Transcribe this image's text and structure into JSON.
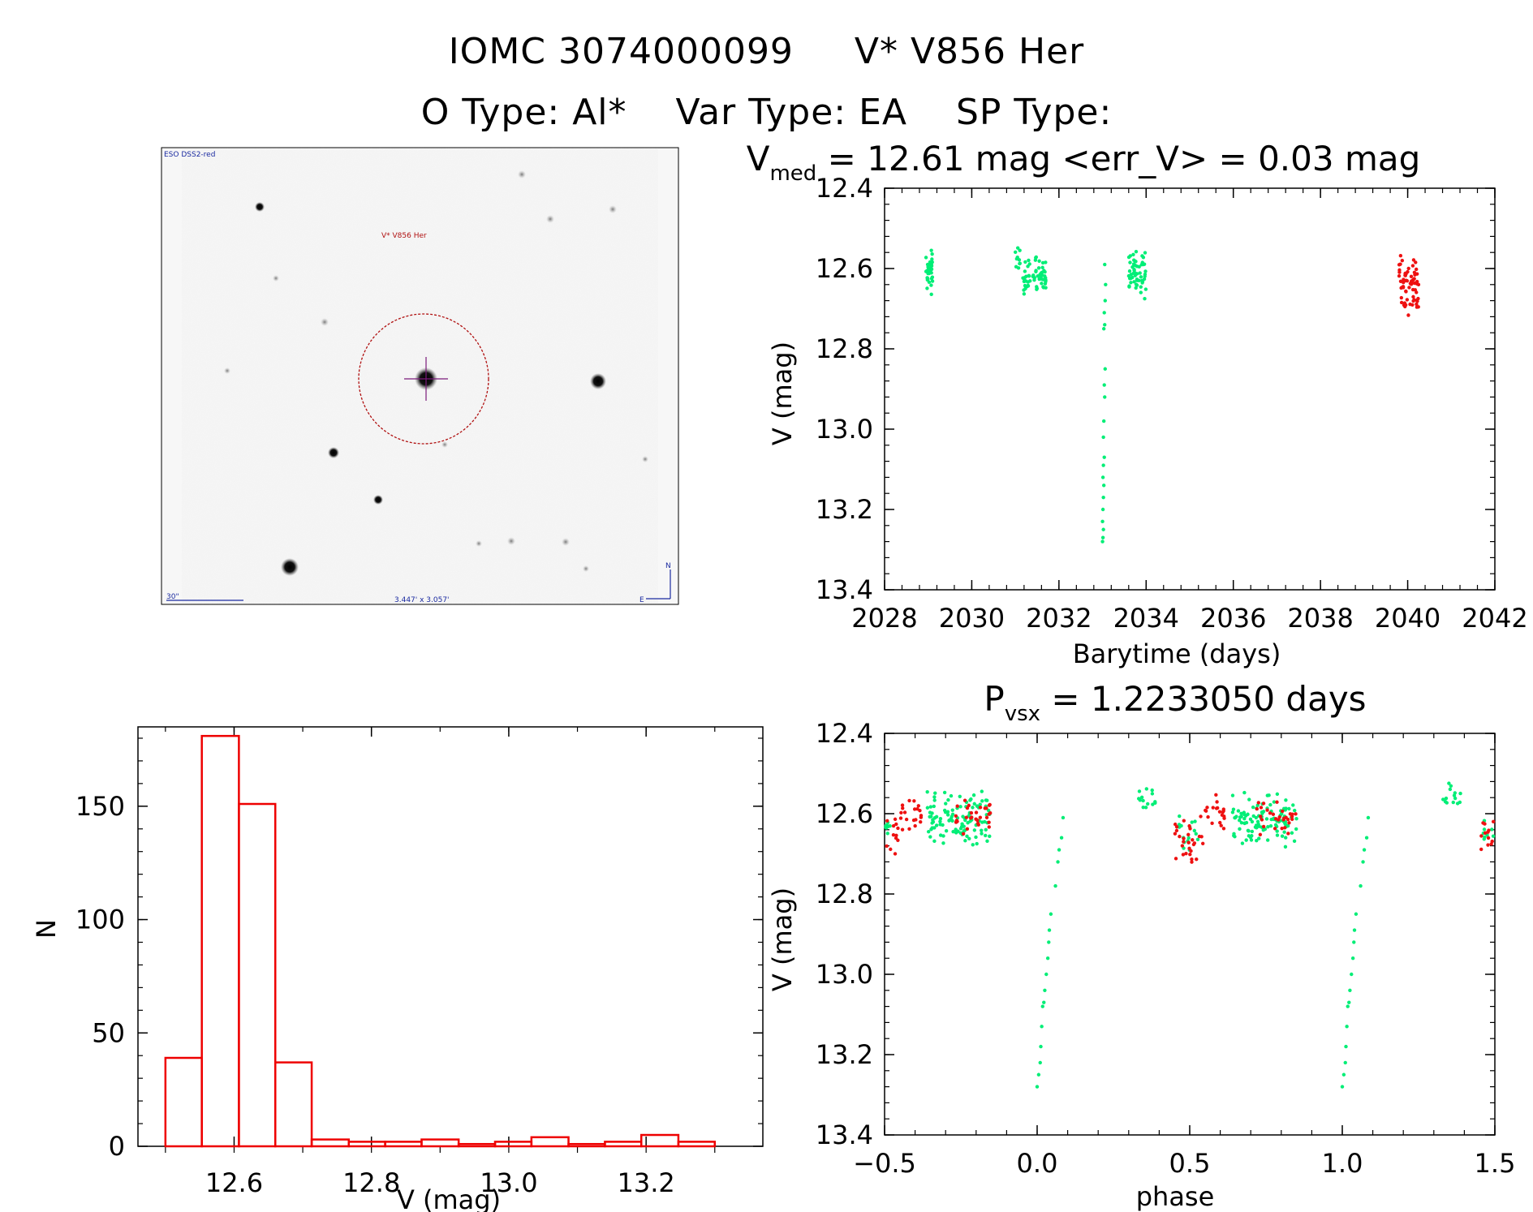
{
  "header": {
    "line1": "IOMC 3074000099",
    "line1_name": "V* V856 Her",
    "line2_otype": "O Type: Al*",
    "line2_vartype": "Var Type: EA",
    "line2_sptype": "SP Type:"
  },
  "colors": {
    "green": "#00ee76",
    "red": "#ee1111",
    "hist": "#ee0000",
    "image_circle": "#b01010",
    "image_label": "#b01010",
    "image_blue": "#1a2aa0",
    "image_cross": "#7a1a7a"
  },
  "finder": {
    "survey": "ESO DSS2-red",
    "object_label": "V* V856 Her",
    "scale_label": "30\"",
    "fov_label": "3.447' x 3.057'",
    "north": "N",
    "east": "E"
  },
  "chart_data": [
    {
      "id": "lightcurve",
      "type": "scatter",
      "title": "V_med = 12.61 mag <err_V> = 0.03 mag",
      "title_parts": {
        "v": "V",
        "sub": "med",
        "rest": " = 12.61 mag <err_V> = 0.03 mag"
      },
      "xlabel": "Barytime (days)",
      "ylabel": "V (mag)",
      "xlim": [
        2028,
        2042
      ],
      "ylim": [
        13.4,
        12.4
      ],
      "x_ticks": [
        "2028",
        "2030",
        "2032",
        "2034",
        "2036",
        "2038",
        "2040",
        "2042"
      ],
      "y_ticks": [
        "12.4",
        "12.6",
        "12.8",
        "13.0",
        "13.2",
        "13.4"
      ],
      "series": [
        {
          "name": "green",
          "color": "green",
          "clusters": [
            {
              "x": [
                2028.95,
                2029.1
              ],
              "y": [
                12.53,
                12.68
              ],
              "n": 40
            },
            {
              "x": [
                2031.0,
                2031.15
              ],
              "y": [
                12.52,
                12.62
              ],
              "n": 10
            },
            {
              "x": [
                2031.15,
                2031.35
              ],
              "y": [
                12.57,
                12.69
              ],
              "n": 22
            },
            {
              "x": [
                2031.4,
                2031.7
              ],
              "y": [
                12.56,
                12.67
              ],
              "n": 40
            }
          ],
          "points": [
            [
              2033.05,
              12.59
            ],
            [
              2033.07,
              12.64
            ],
            [
              2033.06,
              12.68
            ],
            [
              2033.04,
              12.71
            ],
            [
              2033.05,
              12.74
            ],
            [
              2033.03,
              12.75
            ],
            [
              2033.06,
              12.85
            ],
            [
              2033.04,
              12.89
            ],
            [
              2033.05,
              12.92
            ],
            [
              2033.03,
              12.98
            ],
            [
              2033.02,
              13.02
            ],
            [
              2033.04,
              13.07
            ],
            [
              2033.02,
              13.09
            ],
            [
              2033.01,
              13.12
            ],
            [
              2033.03,
              13.14
            ],
            [
              2033.02,
              13.17
            ],
            [
              2033.01,
              13.2
            ],
            [
              2033.0,
              13.23
            ],
            [
              2033.02,
              13.25
            ],
            [
              2033.01,
              13.27
            ],
            [
              2033.0,
              13.28
            ]
          ],
          "clusters2": [
            {
              "x": [
                2033.6,
                2034.0
              ],
              "y": [
                12.55,
                12.68
              ],
              "n": 55
            }
          ]
        },
        {
          "name": "red",
          "color": "red",
          "clusters": [
            {
              "x": [
                2039.8,
                2040.25
              ],
              "y": [
                12.55,
                12.72
              ],
              "n": 70
            }
          ]
        }
      ]
    },
    {
      "id": "histogram",
      "type": "bar",
      "xlabel": "V (mag)",
      "ylabel": "N",
      "xlim": [
        12.46,
        13.37
      ],
      "ylim": [
        0,
        185
      ],
      "x_ticks": [
        "12.6",
        "12.8",
        "13.0",
        "13.2"
      ],
      "y_ticks": [
        "0",
        "50",
        "100",
        "150"
      ],
      "bin_edges": [
        12.5,
        12.553,
        12.607,
        12.66,
        12.713,
        12.767,
        12.82,
        12.873,
        12.927,
        12.98,
        13.033,
        13.087,
        13.14,
        13.193,
        13.247,
        13.3
      ],
      "values": [
        39,
        181,
        151,
        37,
        3,
        2,
        2,
        3,
        1,
        2,
        4,
        1,
        2,
        5,
        2
      ]
    },
    {
      "id": "phased",
      "type": "scatter",
      "title": "P_vsx = 1.2233050 days",
      "title_parts": {
        "v": "P",
        "sub": "vsx",
        "rest": " = 1.2233050 days"
      },
      "xlabel": "phase",
      "ylabel": "V (mag)",
      "xlim": [
        -0.5,
        1.5
      ],
      "ylim": [
        13.4,
        12.4
      ],
      "x_ticks": [
        "−0.5",
        "0.0",
        "0.5",
        "1.0",
        "1.5"
      ],
      "y_ticks": [
        "12.4",
        "12.6",
        "12.8",
        "13.0",
        "13.2",
        "13.4"
      ],
      "series": [
        {
          "name": "green",
          "color": "green",
          "clusters": [
            {
              "x": [
                -0.5,
                -0.48
              ],
              "y": [
                12.6,
                12.68
              ],
              "n": 8
            },
            {
              "x": [
                -0.36,
                -0.15
              ],
              "y": [
                12.54,
                12.69
              ],
              "n": 110
            },
            {
              "x": [
                0.33,
                0.39
              ],
              "y": [
                12.52,
                12.6
              ],
              "n": 14
            },
            {
              "x": [
                0.46,
                0.53
              ],
              "y": [
                12.6,
                12.7
              ],
              "n": 16
            },
            {
              "x": [
                0.64,
                0.85
              ],
              "y": [
                12.54,
                12.69
              ],
              "n": 110
            },
            {
              "x": [
                1.33,
                1.39
              ],
              "y": [
                12.52,
                12.6
              ],
              "n": 14
            },
            {
              "x": [
                1.46,
                1.5
              ],
              "y": [
                12.6,
                12.7
              ],
              "n": 8
            }
          ],
          "points": [
            [
              0.0,
              13.28
            ],
            [
              0.005,
              13.25
            ],
            [
              0.01,
              13.22
            ],
            [
              0.012,
              13.18
            ],
            [
              0.015,
              13.13
            ],
            [
              0.018,
              13.08
            ],
            [
              0.022,
              13.07
            ],
            [
              0.025,
              13.04
            ],
            [
              0.03,
              13.0
            ],
            [
              0.035,
              12.96
            ],
            [
              0.038,
              12.92
            ],
            [
              0.04,
              12.89
            ],
            [
              0.045,
              12.85
            ],
            [
              0.06,
              12.78
            ],
            [
              0.068,
              12.72
            ],
            [
              0.072,
              12.69
            ],
            [
              0.08,
              12.66
            ],
            [
              0.085,
              12.61
            ],
            [
              1.0,
              13.28
            ],
            [
              1.005,
              13.25
            ],
            [
              1.01,
              13.22
            ],
            [
              1.012,
              13.18
            ],
            [
              1.015,
              13.13
            ],
            [
              1.018,
              13.08
            ],
            [
              1.022,
              13.07
            ],
            [
              1.025,
              13.04
            ],
            [
              1.03,
              13.0
            ],
            [
              1.035,
              12.96
            ],
            [
              1.038,
              12.92
            ],
            [
              1.04,
              12.89
            ],
            [
              1.045,
              12.85
            ],
            [
              1.06,
              12.78
            ],
            [
              1.068,
              12.72
            ],
            [
              1.072,
              12.69
            ],
            [
              1.08,
              12.66
            ],
            [
              1.085,
              12.61
            ]
          ]
        },
        {
          "name": "red",
          "color": "red",
          "clusters": [
            {
              "x": [
                -0.5,
                -0.45
              ],
              "y": [
                12.6,
                12.73
              ],
              "n": 12
            },
            {
              "x": [
                -0.45,
                -0.38
              ],
              "y": [
                12.55,
                12.65
              ],
              "n": 20
            },
            {
              "x": [
                -0.28,
                -0.15
              ],
              "y": [
                12.56,
                12.66
              ],
              "n": 30
            },
            {
              "x": [
                0.45,
                0.55
              ],
              "y": [
                12.6,
                12.73
              ],
              "n": 30
            },
            {
              "x": [
                0.55,
                0.62
              ],
              "y": [
                12.55,
                12.65
              ],
              "n": 20
            },
            {
              "x": [
                0.72,
                0.85
              ],
              "y": [
                12.56,
                12.66
              ],
              "n": 30
            },
            {
              "x": [
                1.45,
                1.5
              ],
              "y": [
                12.6,
                12.73
              ],
              "n": 12
            }
          ]
        }
      ]
    }
  ]
}
